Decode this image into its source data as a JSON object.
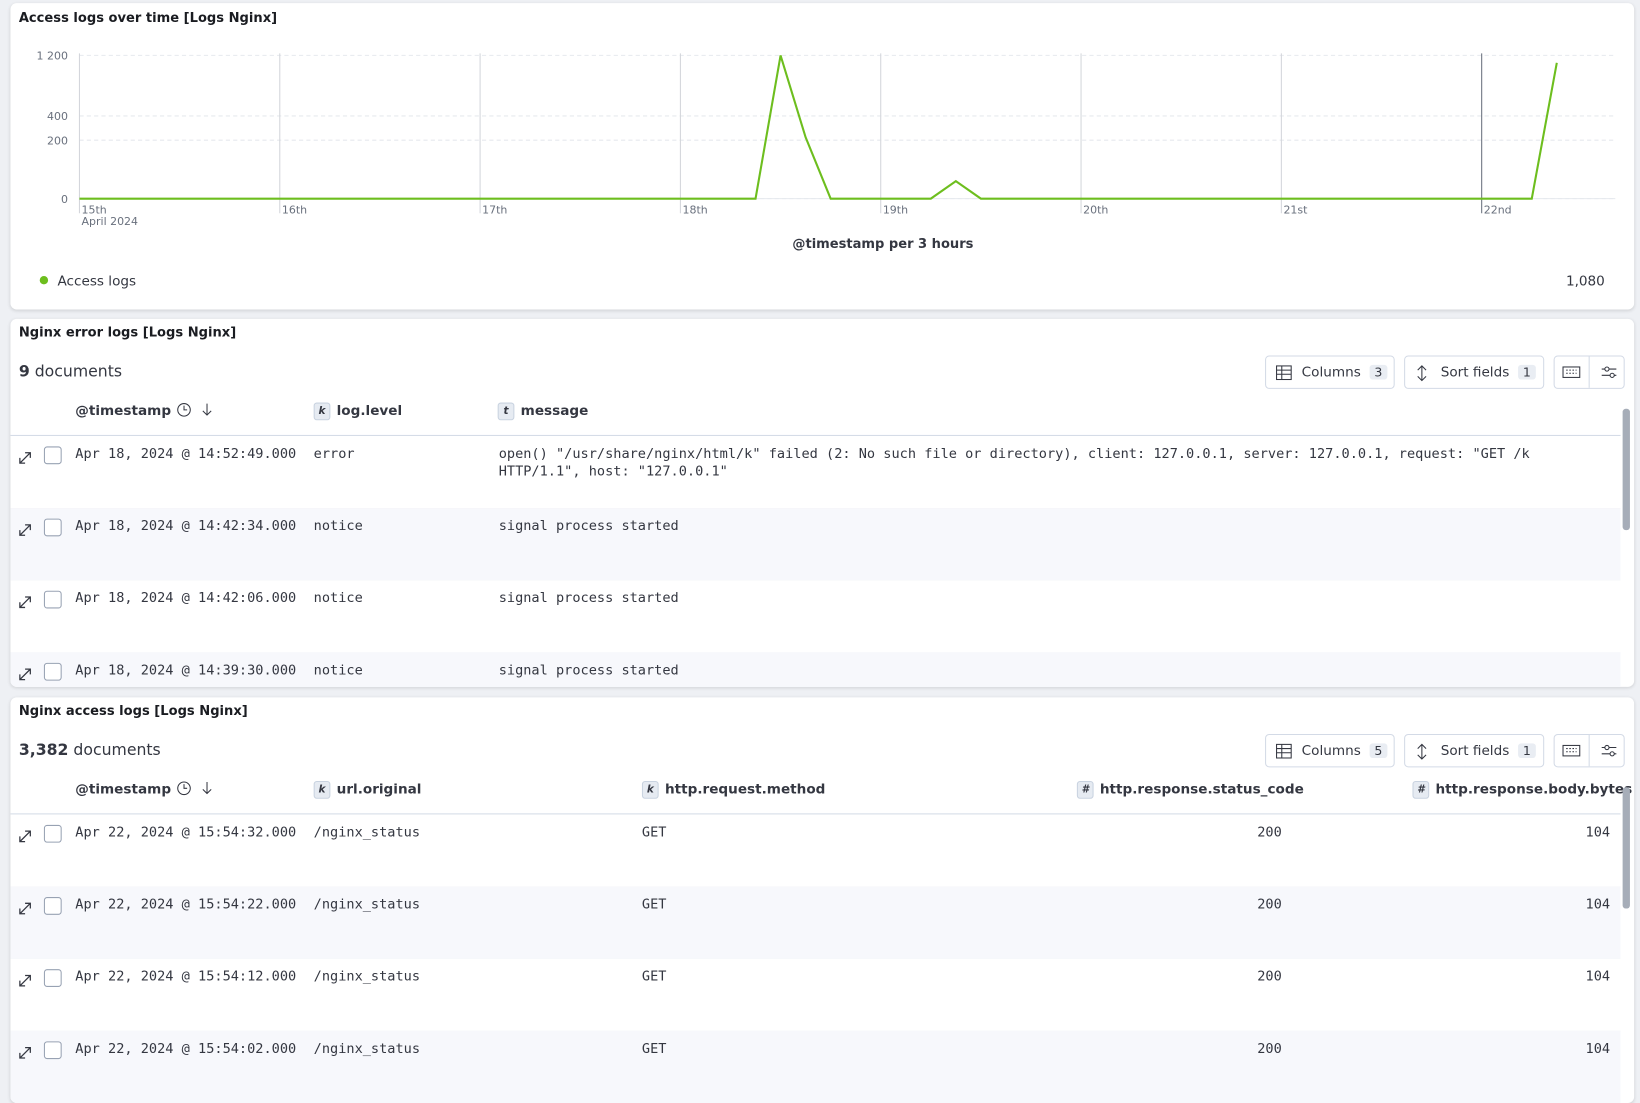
{
  "chart_data": {
    "type": "line",
    "title": "Access logs over time [Logs Nginx]",
    "x": [
      15,
      18.375,
      18.5,
      18.625,
      18.75,
      19.25,
      19.375,
      19.5,
      22.25,
      22.375
    ],
    "series": [
      {
        "name": "Access logs",
        "color": "#6dbe1e",
        "values": [
          0,
          0,
          1200,
          220,
          0,
          0,
          18,
          0,
          0,
          1080
        ]
      }
    ],
    "xlim": [
      15,
      22.667
    ],
    "xticks": [
      {
        "value": 15,
        "label": "15th"
      },
      {
        "value": 16,
        "label": "16th"
      },
      {
        "value": 17,
        "label": "17th"
      },
      {
        "value": 18,
        "label": "18th"
      },
      {
        "value": 19,
        "label": "19th"
      },
      {
        "value": 20,
        "label": "20th"
      },
      {
        "value": 21,
        "label": "21st"
      },
      {
        "value": 22,
        "label": "22nd"
      }
    ],
    "x_sublabel": "April 2024",
    "xlabel": "@timestamp per 3 hours",
    "ylim": [
      0,
      1200
    ],
    "scale": "sqrt",
    "yticks": [
      0,
      200,
      400,
      {
        "value": 1200,
        "label": "1 200"
      }
    ],
    "grid": true,
    "legend_value": "1,080"
  },
  "error_logs": {
    "title": "Nginx error logs [Logs Nginx]",
    "doc_count": "9",
    "doc_label": "documents",
    "columns_button": "Columns",
    "columns_count": "3",
    "sort_button": "Sort fields",
    "sort_count": "1",
    "headers": [
      "@timestamp",
      "log.level",
      "message"
    ],
    "header_types": [
      null,
      "k",
      "t"
    ],
    "rows": [
      [
        "Apr 18, 2024 @ 14:52:49.000",
        "error",
        "open() \"/usr/share/nginx/html/k\" failed (2: No such file or directory), client: 127.0.0.1, server: 127.0.0.1, request: \"GET /k HTTP/1.1\", host: \"127.0.0.1\""
      ],
      [
        "Apr 18, 2024 @ 14:42:34.000",
        "notice",
        "signal process started"
      ],
      [
        "Apr 18, 2024 @ 14:42:06.000",
        "notice",
        "signal process started"
      ],
      [
        "Apr 18, 2024 @ 14:39:30.000",
        "notice",
        "signal process started"
      ]
    ]
  },
  "access_logs": {
    "title": "Nginx access logs [Logs Nginx]",
    "doc_count": "3,382",
    "doc_label": "documents",
    "columns_button": "Columns",
    "columns_count": "5",
    "sort_button": "Sort fields",
    "sort_count": "1",
    "headers": [
      "@timestamp",
      "url.original",
      "http.request.method",
      "http.response.status_code",
      "http.response.body.bytes"
    ],
    "header_types": [
      null,
      "k",
      "k",
      "#",
      "#"
    ],
    "rows": [
      [
        "Apr 22, 2024 @ 15:54:32.000",
        "/nginx_status",
        "GET",
        "200",
        "104"
      ],
      [
        "Apr 22, 2024 @ 15:54:22.000",
        "/nginx_status",
        "GET",
        "200",
        "104"
      ],
      [
        "Apr 22, 2024 @ 15:54:12.000",
        "/nginx_status",
        "GET",
        "200",
        "104"
      ],
      [
        "Apr 22, 2024 @ 15:54:02.000",
        "/nginx_status",
        "GET",
        "200",
        "104"
      ]
    ]
  }
}
